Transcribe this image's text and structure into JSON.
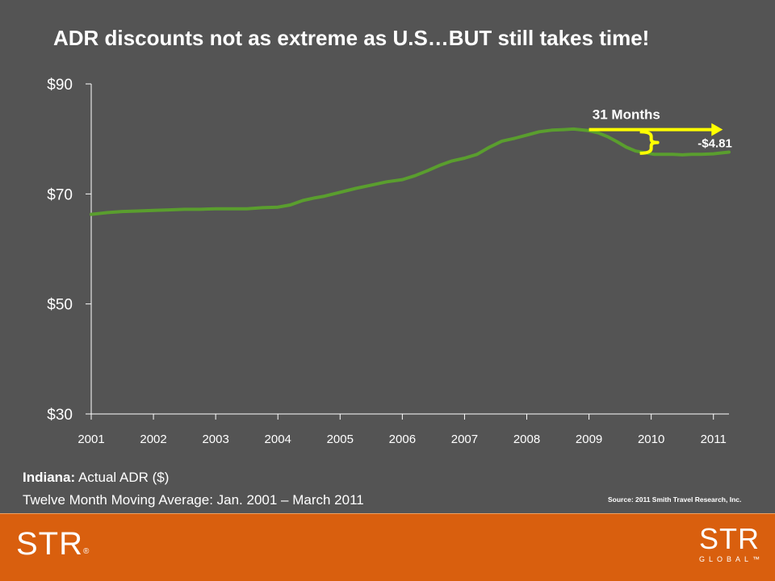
{
  "title": "ADR discounts not as extreme as U.S…BUT still takes time!",
  "caption": {
    "line1_bold": "Indiana:",
    "line1_rest": " Actual ADR ($)",
    "line2": "Twelve Month Moving Average: Jan. 2001 – March 2011"
  },
  "source": "Source: 2011 Smith Travel Research, Inc.",
  "footer": {
    "logo_left": "STR",
    "logo_left_mark": "®",
    "logo_right_big": "STR",
    "logo_right_small": "GLOBAL™"
  },
  "annotations": {
    "months_label": "31 Months",
    "drop_label": "-$4.81"
  },
  "colors": {
    "background": "#545454",
    "line": "#5a9e2e",
    "annotation": "#ffff00",
    "footer": "#d95f0e"
  },
  "chart_data": {
    "type": "line",
    "title": "ADR discounts not as extreme as U.S…BUT still takes time!",
    "xlabel": "",
    "ylabel": "",
    "ylim": [
      30,
      90
    ],
    "y_ticks": [
      30,
      50,
      70,
      90
    ],
    "y_tick_labels": [
      "$30",
      "$50",
      "$70",
      "$90"
    ],
    "x_ticks": [
      2001,
      2002,
      2003,
      2004,
      2005,
      2006,
      2007,
      2008,
      2009,
      2010,
      2011
    ],
    "x_tick_labels": [
      "2001",
      "2002",
      "2003",
      "2004",
      "2005",
      "2006",
      "2007",
      "2008",
      "2009",
      "2010",
      "2011"
    ],
    "xlim": [
      2001,
      2011.25
    ],
    "grid": false,
    "series": [
      {
        "values_x": [
          2001.0,
          2001.25,
          2001.5,
          2001.75,
          2002.0,
          2002.25,
          2002.5,
          2002.75,
          2003.0,
          2003.25,
          2003.5,
          2003.75,
          2004.0,
          2004.2,
          2004.4,
          2004.6,
          2004.75,
          2005.0,
          2005.25,
          2005.5,
          2005.75,
          2006.0,
          2006.2,
          2006.4,
          2006.6,
          2006.8,
          2007.0,
          2007.2,
          2007.4,
          2007.6,
          2007.8,
          2008.0,
          2008.2,
          2008.4,
          2008.6,
          2008.75,
          2009.0,
          2009.15,
          2009.3,
          2009.45,
          2009.6,
          2009.75,
          2009.9,
          2010.05,
          2010.2,
          2010.35,
          2010.5,
          2010.65,
          2010.8,
          2011.0,
          2011.25
        ],
        "values": [
          66.3,
          66.6,
          66.8,
          66.9,
          67.0,
          67.1,
          67.2,
          67.2,
          67.3,
          67.3,
          67.3,
          67.5,
          67.6,
          68.0,
          68.8,
          69.3,
          69.6,
          70.3,
          71.0,
          71.6,
          72.2,
          72.6,
          73.3,
          74.2,
          75.2,
          76.0,
          76.5,
          77.2,
          78.5,
          79.6,
          80.1,
          80.7,
          81.3,
          81.6,
          81.7,
          81.8,
          81.5,
          81.1,
          80.4,
          79.5,
          78.5,
          77.8,
          77.5,
          77.2,
          77.2,
          77.2,
          77.1,
          77.2,
          77.2,
          77.3,
          77.6
        ]
      }
    ]
  }
}
